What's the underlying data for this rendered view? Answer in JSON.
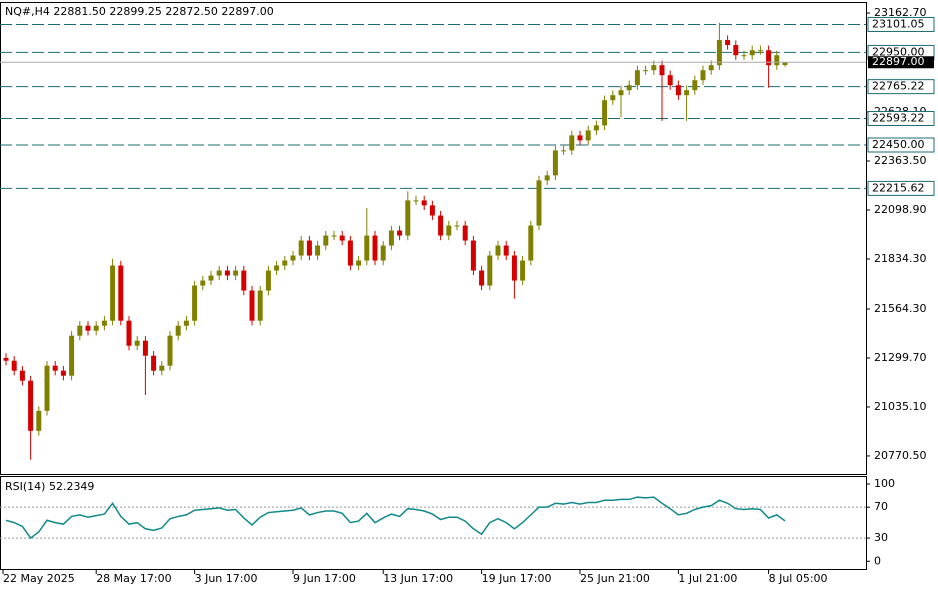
{
  "chart_data": {
    "type": "candlestick",
    "title": "NQ#,H4  22881.50 22899.25 22872.50 22897.00",
    "categories": [
      "22 May 2025",
      null,
      null,
      null,
      null,
      null,
      null,
      null,
      null,
      null,
      null,
      "28 May 17:00",
      null,
      null,
      null,
      null,
      null,
      null,
      null,
      null,
      null,
      null,
      null,
      "3 Jun 17:00",
      null,
      null,
      null,
      null,
      null,
      null,
      null,
      null,
      null,
      null,
      null,
      "9 Jun 17:00",
      null,
      null,
      null,
      null,
      null,
      null,
      null,
      null,
      null,
      null,
      "13 Jun 17:00",
      null,
      null,
      null,
      null,
      null,
      null,
      null,
      null,
      null,
      null,
      null,
      "19 Jun 17:00",
      null,
      null,
      null,
      null,
      null,
      null,
      null,
      null,
      null,
      null,
      null,
      "25 Jun 21:00",
      null,
      null,
      null,
      null,
      null,
      null,
      null,
      null,
      null,
      null,
      null,
      "1 Jul 21:00",
      null,
      null,
      null,
      null,
      null,
      null,
      null,
      null,
      null,
      null,
      "8 Jul 05:00",
      null,
      null
    ],
    "open": [
      21300,
      21285,
      21231,
      21177,
      20906,
      21014,
      21258,
      21231,
      21204,
      21420,
      21474,
      21447,
      21474,
      21501,
      21799,
      21501,
      21366,
      21393,
      21312,
      21231,
      21258,
      21420,
      21474,
      21501,
      21691,
      21718,
      21745,
      21772,
      21745,
      21772,
      21664,
      21501,
      21664,
      21772,
      21799,
      21826,
      21853,
      21934,
      21853,
      21907,
      21961,
      21961,
      21934,
      21799,
      21826,
      21961,
      21826,
      21907,
      21988,
      21961,
      22151,
      22151,
      22124,
      22069,
      21961,
      22015,
      22015,
      21934,
      21772,
      21691,
      21853,
      21907,
      21853,
      21718,
      21826,
      22015,
      22259,
      22286,
      22421,
      22421,
      22502,
      22475,
      22529,
      22556,
      22692,
      22719,
      22746,
      22773,
      22854,
      22854,
      22881,
      22827,
      22773,
      22719,
      22746,
      22800,
      22854,
      22881,
      23017,
      22990,
      22935,
      22935,
      22962,
      22962,
      22881,
      22881.5
    ],
    "high": [
      21325,
      21310,
      21256,
      21202,
      21039,
      21283,
      21283,
      21256,
      21445,
      21499,
      21499,
      21499,
      21526,
      21835,
      21824,
      21526,
      21418,
      21418,
      21337,
      21283,
      21445,
      21499,
      21526,
      21716,
      21743,
      21770,
      21797,
      21797,
      21797,
      21797,
      21689,
      21689,
      21797,
      21824,
      21851,
      21878,
      21959,
      21959,
      21932,
      21986,
      21986,
      21986,
      21959,
      21851,
      22110,
      21986,
      21932,
      22013,
      22013,
      22200,
      22176,
      22176,
      22149,
      22094,
      22040,
      22040,
      22040,
      21959,
      21797,
      21878,
      21932,
      21932,
      21878,
      21851,
      22040,
      22284,
      22311,
      22446,
      22446,
      22527,
      22527,
      22554,
      22581,
      22717,
      22744,
      22771,
      22798,
      22879,
      22879,
      22906,
      22906,
      22852,
      22798,
      22771,
      22825,
      22879,
      22906,
      23110,
      23042,
      23015,
      22960,
      22987,
      22987,
      22987,
      22960,
      22899.25
    ],
    "low": [
      21260,
      21206,
      21152,
      20750,
      20881,
      20989,
      21206,
      21179,
      21179,
      21395,
      21422,
      21422,
      21449,
      21476,
      21476,
      21341,
      21341,
      21100,
      21206,
      21206,
      21233,
      21395,
      21449,
      21476,
      21666,
      21693,
      21720,
      21720,
      21720,
      21639,
      21476,
      21476,
      21639,
      21747,
      21774,
      21801,
      21828,
      21828,
      21828,
      21882,
      21936,
      21909,
      21774,
      21774,
      21801,
      21801,
      21801,
      21882,
      21936,
      21936,
      22126,
      22099,
      22044,
      21936,
      21936,
      21990,
      21909,
      21747,
      21666,
      21666,
      21828,
      21828,
      21620,
      21693,
      21801,
      21990,
      22234,
      22261,
      22396,
      22396,
      22450,
      22450,
      22504,
      22531,
      22667,
      22600,
      22721,
      22748,
      22829,
      22829,
      22580,
      22748,
      22694,
      22580,
      22721,
      22775,
      22829,
      22856,
      22965,
      22910,
      22910,
      22910,
      22937,
      22760,
      22856,
      22872.5
    ],
    "close": [
      21285,
      21231,
      21177,
      20906,
      21014,
      21258,
      21231,
      21204,
      21420,
      21474,
      21447,
      21474,
      21501,
      21799,
      21501,
      21366,
      21393,
      21312,
      21231,
      21258,
      21420,
      21474,
      21501,
      21691,
      21718,
      21745,
      21772,
      21745,
      21772,
      21664,
      21501,
      21664,
      21772,
      21799,
      21826,
      21853,
      21934,
      21853,
      21907,
      21961,
      21961,
      21934,
      21799,
      21826,
      21961,
      21826,
      21907,
      21988,
      21961,
      22151,
      22151,
      22124,
      22069,
      21961,
      22015,
      22015,
      21934,
      21772,
      21691,
      21853,
      21907,
      21853,
      21718,
      21826,
      22015,
      22259,
      22286,
      22421,
      22421,
      22502,
      22475,
      22529,
      22556,
      22692,
      22719,
      22746,
      22773,
      22854,
      22854,
      22881,
      22827,
      22773,
      22719,
      22746,
      22800,
      22854,
      22881,
      23017,
      22990,
      22935,
      22935,
      22962,
      22962,
      22881,
      22935,
      22897
    ],
    "up_color": "#808000",
    "down_color": "#d40000",
    "ylim": [
      20673,
      23217
    ],
    "yticks": [
      {
        "value": 23162.7,
        "label": "23162.70"
      },
      {
        "value": 22628.1,
        "label": "22628.10"
      },
      {
        "value": 22363.5,
        "label": "22363.50"
      },
      {
        "value": 22098.9,
        "label": "22098.90"
      },
      {
        "value": 21834.3,
        "label": "21834.30"
      },
      {
        "value": 21564.3,
        "label": "21564.30"
      },
      {
        "value": 21299.7,
        "label": "21299.70"
      },
      {
        "value": 21035.1,
        "label": "21035.10"
      },
      {
        "value": 20770.5,
        "label": "20770.50"
      }
    ],
    "levels": [
      {
        "value": 23101.05,
        "label": "23101.05"
      },
      {
        "value": 22950,
        "label": "22950.00"
      },
      {
        "value": 22765.22,
        "label": "22765.22"
      },
      {
        "value": 22593.22,
        "label": "22593.22"
      },
      {
        "value": 22450,
        "label": "22450.00"
      },
      {
        "value": 22215.62,
        "label": "22215.62"
      }
    ],
    "level_color": "#1c6b74",
    "current_price": {
      "value": 22897,
      "label": "22897.00"
    },
    "rsi": {
      "title": "RSI(14) 52.2349",
      "color": "#10898a",
      "ylim": [
        -10,
        109
      ],
      "yticks": [
        100,
        70,
        30,
        0
      ],
      "levels": [
        70,
        30
      ],
      "values": [
        53,
        50,
        45,
        30,
        38,
        53,
        50,
        48,
        58,
        60,
        57,
        59,
        61,
        75,
        58,
        48,
        50,
        42,
        40,
        43,
        55,
        58,
        60,
        66,
        67,
        68,
        69,
        66,
        67,
        56,
        47,
        57,
        63,
        64,
        65,
        66,
        69,
        60,
        63,
        65,
        65,
        62,
        50,
        52,
        62,
        50,
        56,
        61,
        58,
        68,
        67,
        65,
        61,
        54,
        57,
        57,
        52,
        42,
        35,
        50,
        55,
        50,
        42,
        50,
        60,
        70,
        70,
        75,
        74,
        76,
        74,
        76,
        76,
        79,
        79,
        80,
        80,
        83,
        82,
        83,
        75,
        68,
        60,
        62,
        67,
        70,
        72,
        79,
        75,
        68,
        67,
        68,
        67,
        56,
        60,
        52.2349
      ]
    }
  }
}
